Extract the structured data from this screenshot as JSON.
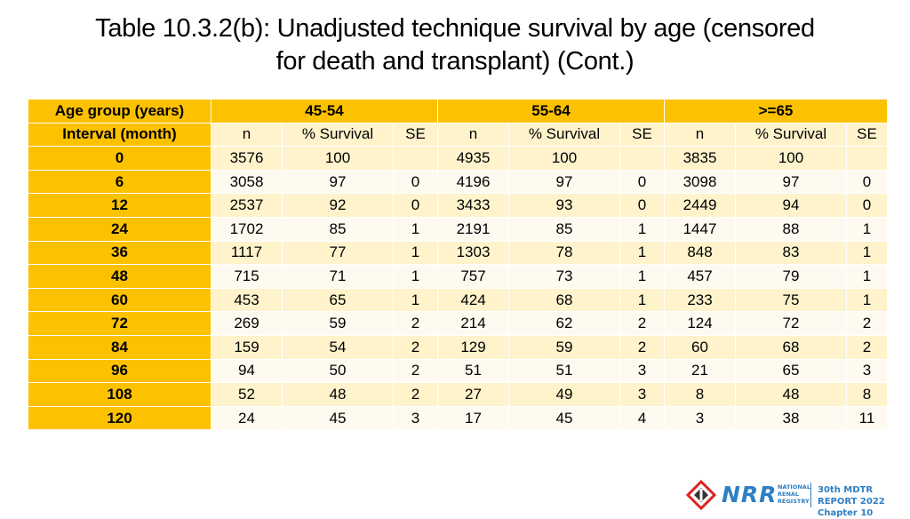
{
  "title_line1": "Table 10.3.2(b): Unadjusted technique survival by age (censored",
  "title_line2": "for death and transplant) (Cont.)",
  "table": {
    "header_left_top": "Age group (years)",
    "header_left_bottom": "Interval (month)",
    "groups": [
      "45-54",
      "55-64",
      ">=65"
    ],
    "subheaders": [
      "n",
      "% Survival",
      "SE"
    ],
    "rows": [
      {
        "interval": "0",
        "cells": [
          "3576",
          "100",
          "",
          "4935",
          "100",
          "",
          "3835",
          "100",
          ""
        ]
      },
      {
        "interval": "6",
        "cells": [
          "3058",
          "97",
          "0",
          "4196",
          "97",
          "0",
          "3098",
          "97",
          "0"
        ]
      },
      {
        "interval": "12",
        "cells": [
          "2537",
          "92",
          "0",
          "3433",
          "93",
          "0",
          "2449",
          "94",
          "0"
        ]
      },
      {
        "interval": "24",
        "cells": [
          "1702",
          "85",
          "1",
          "2191",
          "85",
          "1",
          "1447",
          "88",
          "1"
        ]
      },
      {
        "interval": "36",
        "cells": [
          "1117",
          "77",
          "1",
          "1303",
          "78",
          "1",
          "848",
          "83",
          "1"
        ]
      },
      {
        "interval": "48",
        "cells": [
          "715",
          "71",
          "1",
          "757",
          "73",
          "1",
          "457",
          "79",
          "1"
        ]
      },
      {
        "interval": "60",
        "cells": [
          "453",
          "65",
          "1",
          "424",
          "68",
          "1",
          "233",
          "75",
          "1"
        ]
      },
      {
        "interval": "72",
        "cells": [
          "269",
          "59",
          "2",
          "214",
          "62",
          "2",
          "124",
          "72",
          "2"
        ]
      },
      {
        "interval": "84",
        "cells": [
          "159",
          "54",
          "2",
          "129",
          "59",
          "2",
          "60",
          "68",
          "2"
        ]
      },
      {
        "interval": "96",
        "cells": [
          "94",
          "50",
          "2",
          "51",
          "51",
          "3",
          "21",
          "65",
          "3"
        ]
      },
      {
        "interval": "108",
        "cells": [
          "52",
          "48",
          "2",
          "27",
          "49",
          "3",
          "8",
          "48",
          "8"
        ]
      },
      {
        "interval": "120",
        "cells": [
          "24",
          "45",
          "3",
          "17",
          "45",
          "4",
          "3",
          "38",
          "11"
        ]
      }
    ]
  },
  "footer": {
    "logo_text": "NRR",
    "logo_small_lines": [
      "NATIONAL",
      "RENAL",
      "REGISTRY"
    ],
    "report_title": "30th MDTR REPORT 2022",
    "chapter": "Chapter 10",
    "colors": {
      "accent": "#fcc200",
      "brand_blue": "#2f7fc4",
      "brand_red": "#dd2222"
    }
  }
}
